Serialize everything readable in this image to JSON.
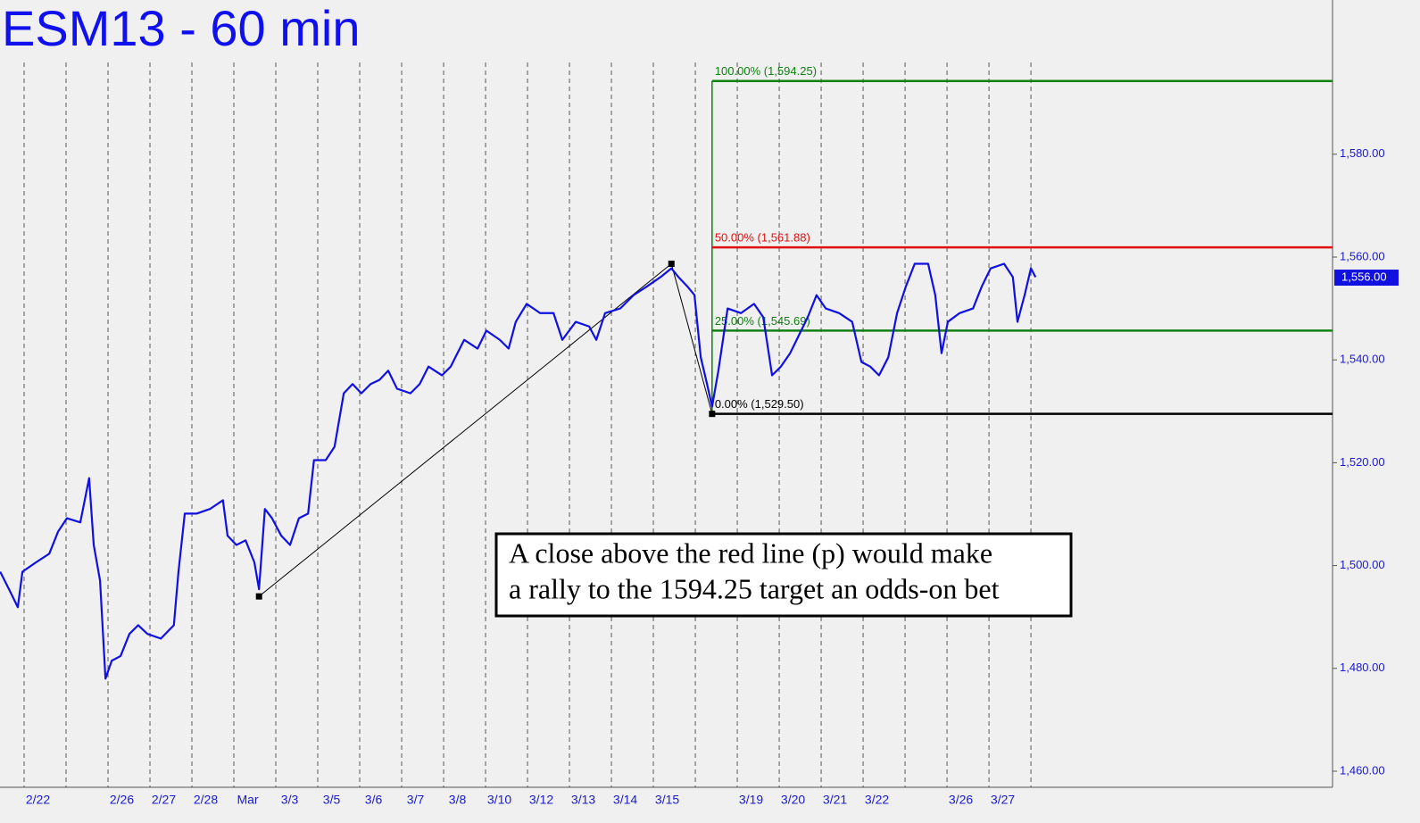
{
  "chart_data": {
    "type": "line",
    "title": "ESM13 - 60 min",
    "categories": [
      null,
      "2/22",
      null,
      "2/26",
      "2/27",
      "2/28",
      "Mar",
      "3/3",
      "3/5",
      "3/6",
      "3/7",
      "3/8",
      "3/10",
      "3/12",
      "3/13",
      "3/14",
      "3/15",
      null,
      "3/19",
      "3/20",
      "3/21",
      "3/22",
      null,
      "3/26",
      "3/27"
    ],
    "xlim": [
      0,
      32.19
    ],
    "ylim": [
      1458,
      1610
    ],
    "yticks": [
      {
        "value": 1460,
        "label": "1,460.00"
      },
      {
        "value": 1480,
        "label": "1,480.00"
      },
      {
        "value": 1500,
        "label": "1,500.00"
      },
      {
        "value": 1520,
        "label": "1,520.00"
      },
      {
        "value": 1540,
        "label": "1,540.00"
      },
      {
        "value": 1560,
        "label": "1,560.00"
      },
      {
        "value": 1580,
        "label": "1,580.00"
      }
    ],
    "series": [
      {
        "name": "ESM13",
        "color": "#1010e0",
        "x": [
          0.43,
          0.64,
          0.85,
          0.96,
          1.28,
          1.6,
          1.81,
          2.02,
          2.34,
          2.55,
          2.66,
          2.81,
          2.94,
          3.09,
          3.3,
          3.51,
          3.72,
          3.94,
          4.26,
          4.57,
          4.68,
          4.83,
          5.11,
          5.43,
          5.74,
          5.85,
          6.06,
          6.28,
          6.49,
          6.6,
          6.74,
          6.91,
          7.13,
          7.34,
          7.55,
          7.77,
          7.91,
          8.19,
          8.4,
          8.62,
          8.83,
          9.04,
          9.26,
          9.47,
          9.68,
          9.89,
          10.21,
          10.43,
          10.64,
          10.96,
          11.17,
          11.49,
          11.81,
          12.02,
          12.34,
          12.55,
          12.72,
          12.98,
          13.3,
          13.62,
          13.83,
          14.15,
          14.47,
          14.64,
          14.85,
          15.21,
          15.53,
          15.85,
          16.17,
          16.43,
          16.6,
          16.81,
          16.98,
          17.13,
          17.28,
          17.4,
          17.55,
          17.77,
          18.09,
          18.4,
          18.62,
          18.83,
          19.04,
          19.26,
          19.47,
          19.68,
          19.89,
          20.11,
          20.43,
          20.74,
          20.96,
          21.17,
          21.38,
          21.6,
          21.81,
          22.02,
          22.23,
          22.55,
          22.72,
          22.87,
          23.02,
          23.3,
          23.62,
          23.83,
          24.04,
          24.36,
          24.57,
          24.68,
          24.85,
          25.0,
          25.11
        ],
        "values": [
          1498.8,
          1495.4,
          1491.9,
          1498.8,
          1500.6,
          1502.3,
          1506.6,
          1509.2,
          1508.4,
          1517.0,
          1504.0,
          1497.1,
          1478.0,
          1481.5,
          1482.4,
          1486.7,
          1488.4,
          1486.7,
          1485.8,
          1488.4,
          1498.8,
          1510.1,
          1510.1,
          1511.0,
          1512.7,
          1505.8,
          1504.0,
          1504.9,
          1500.6,
          1495.4,
          1511.0,
          1509.2,
          1505.8,
          1504.0,
          1509.2,
          1510.1,
          1520.5,
          1520.5,
          1523.1,
          1533.5,
          1535.3,
          1533.5,
          1535.3,
          1536.1,
          1537.9,
          1534.4,
          1533.5,
          1535.3,
          1538.7,
          1537.0,
          1538.7,
          1543.9,
          1542.2,
          1545.7,
          1543.9,
          1542.2,
          1547.4,
          1550.9,
          1549.1,
          1549.1,
          1543.9,
          1547.4,
          1546.5,
          1543.9,
          1549.1,
          1550.0,
          1552.6,
          1554.3,
          1556.1,
          1557.8,
          1556.1,
          1554.3,
          1552.6,
          1540.5,
          1535.3,
          1530.9,
          1537.9,
          1550.0,
          1549.1,
          1550.9,
          1548.3,
          1537.0,
          1538.7,
          1541.3,
          1544.8,
          1548.3,
          1552.6,
          1550.0,
          1549.1,
          1547.4,
          1539.6,
          1538.7,
          1537.0,
          1540.5,
          1549.1,
          1554.3,
          1558.7,
          1558.7,
          1552.6,
          1541.3,
          1547.4,
          1549.1,
          1550.0,
          1554.3,
          1557.8,
          1558.7,
          1556.1,
          1547.4,
          1552.6,
          1557.8,
          1556.1
        ]
      }
    ],
    "swing_line": {
      "color": "#000000",
      "x": [
        6.6,
        16.43,
        17.4
      ],
      "values": [
        1494.0,
        1558.7,
        1529.5
      ]
    },
    "fib_start": 17.4,
    "fib_levels": [
      {
        "label": "100.00% (1,594.25)",
        "value": 1594.25,
        "color": "#108010"
      },
      {
        "label": "50.00% (1,561.88)",
        "value": 1561.88,
        "color": "#e01010"
      },
      {
        "label": "25.00% (1,545.69)",
        "value": 1545.69,
        "color": "#108010"
      },
      {
        "label": "0.00% (1,529.50)",
        "value": 1529.5,
        "color": "#000000"
      }
    ],
    "last_price": {
      "value": 1556,
      "label": "1,556.00"
    },
    "annotation": [
      "A close above the red line (p) would make",
      "a rally to the 1594.25 target an odds-on bet"
    ]
  }
}
